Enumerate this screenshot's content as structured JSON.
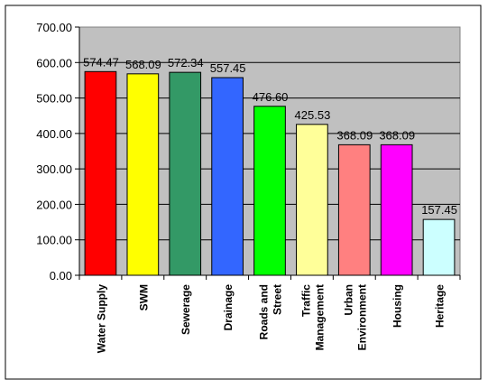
{
  "chart_data": {
    "type": "bar",
    "title": "",
    "xlabel": "",
    "ylabel": "",
    "ylim": [
      0,
      700
    ],
    "yticks": [
      "0.00",
      "100.00",
      "200.00",
      "300.00",
      "400.00",
      "500.00",
      "600.00",
      "700.00"
    ],
    "grid": true,
    "legend": "none",
    "categories": [
      [
        "Water Supply"
      ],
      [
        "SWM"
      ],
      [
        "Sewerage"
      ],
      [
        "Drainage"
      ],
      [
        "Roads and",
        "Street"
      ],
      [
        "Traffic",
        "Management"
      ],
      [
        "Urban",
        "Environment"
      ],
      [
        "Housing"
      ],
      [
        "Heritage"
      ]
    ],
    "values": [
      574.47,
      568.09,
      572.34,
      557.45,
      476.6,
      425.53,
      368.09,
      368.09,
      157.45
    ],
    "value_labels": [
      "574.47",
      "568.09",
      "572.34",
      "557.45",
      "476.60",
      "425.53",
      "368.09",
      "368.09",
      "157.45"
    ],
    "bar_colors": [
      "#ff0000",
      "#ffff00",
      "#339966",
      "#3366ff",
      "#00ff00",
      "#ffff99",
      "#ff8080",
      "#ff00ff",
      "#ccffff"
    ],
    "plot_background": "#c0c0c0"
  }
}
